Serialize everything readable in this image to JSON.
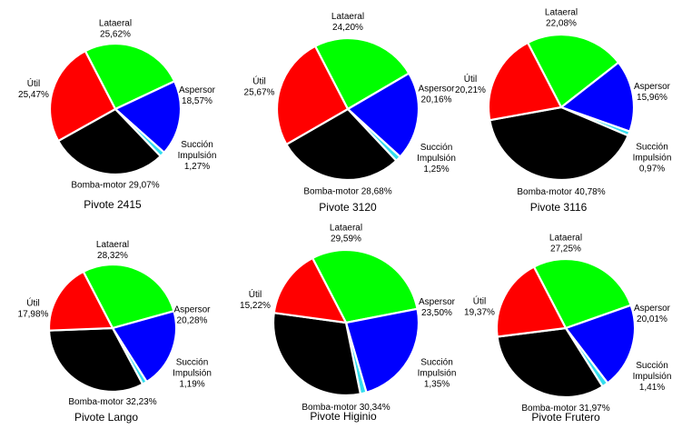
{
  "colors": {
    "Lataeral": "#00ff00",
    "Aspersor": "#0000ff",
    "Succión Impulsión": "#33ddee",
    "Bomba-motor": "#000000",
    "Útil": "#ff0000"
  },
  "chart_data": [
    {
      "type": "pie",
      "title": "Pivote 2415",
      "slices": [
        {
          "label": "Lataeral",
          "value": 25.62,
          "value_label": "25,62%"
        },
        {
          "label": "Aspersor",
          "value": 18.57,
          "value_label": "18,57%"
        },
        {
          "label": "Succión Impulsión",
          "value": 1.27,
          "value_label": "1,27%"
        },
        {
          "label": "Bomba-motor",
          "value": 29.07,
          "value_label": "29,07%"
        },
        {
          "label": "Útil",
          "value": 25.47,
          "value_label": "25,47%"
        }
      ]
    },
    {
      "type": "pie",
      "title": "Pivote 3120",
      "slices": [
        {
          "label": "Lataeral",
          "value": 24.2,
          "value_label": "24,20%"
        },
        {
          "label": "Aspersor",
          "value": 20.16,
          "value_label": "20,16%"
        },
        {
          "label": "Succión Impulsión",
          "value": 1.25,
          "value_label": "1,25%"
        },
        {
          "label": "Bomba-motor",
          "value": 28.68,
          "value_label": "28,68%"
        },
        {
          "label": "Útil",
          "value": 25.67,
          "value_label": "25,67%"
        }
      ]
    },
    {
      "type": "pie",
      "title": "Pivote 3116",
      "slices": [
        {
          "label": "Lataeral",
          "value": 22.08,
          "value_label": "22,08%"
        },
        {
          "label": "Aspersor",
          "value": 15.96,
          "value_label": "15,96%"
        },
        {
          "label": "Succión Impulsión",
          "value": 0.97,
          "value_label": "0,97%"
        },
        {
          "label": "Bomba-motor",
          "value": 40.78,
          "value_label": "40,78%"
        },
        {
          "label": "Útil",
          "value": 20.21,
          "value_label": "20,21%"
        }
      ]
    },
    {
      "type": "pie",
      "title": "Pivote Lango",
      "slices": [
        {
          "label": "Lataeral",
          "value": 28.32,
          "value_label": "28,32%"
        },
        {
          "label": "Aspersor",
          "value": 20.28,
          "value_label": "20,28%"
        },
        {
          "label": "Succión Impulsión",
          "value": 1.19,
          "value_label": "1,19%"
        },
        {
          "label": "Bomba-motor",
          "value": 32.23,
          "value_label": "32,23%"
        },
        {
          "label": "Útil",
          "value": 17.98,
          "value_label": "17,98%"
        }
      ]
    },
    {
      "type": "pie",
      "title": "Pivote Higinio",
      "slices": [
        {
          "label": "Lataeral",
          "value": 29.59,
          "value_label": "29,59%"
        },
        {
          "label": "Aspersor",
          "value": 23.5,
          "value_label": "23,50%"
        },
        {
          "label": "Succión Impulsión",
          "value": 1.35,
          "value_label": "1,35%"
        },
        {
          "label": "Bomba-motor",
          "value": 30.34,
          "value_label": "30,34%"
        },
        {
          "label": "Útil",
          "value": 15.22,
          "value_label": "15,22%"
        }
      ]
    },
    {
      "type": "pie",
      "title": "Pivote Frutero",
      "slices": [
        {
          "label": "Lataeral",
          "value": 27.25,
          "value_label": "27,25%"
        },
        {
          "label": "Aspersor",
          "value": 20.01,
          "value_label": "20,01%"
        },
        {
          "label": "Succión Impulsión",
          "value": 1.41,
          "value_label": "1,41%"
        },
        {
          "label": "Bomba-motor",
          "value": 31.97,
          "value_label": "31,97%"
        },
        {
          "label": "Útil",
          "value": 19.37,
          "value_label": "19,37%"
        }
      ]
    }
  ]
}
